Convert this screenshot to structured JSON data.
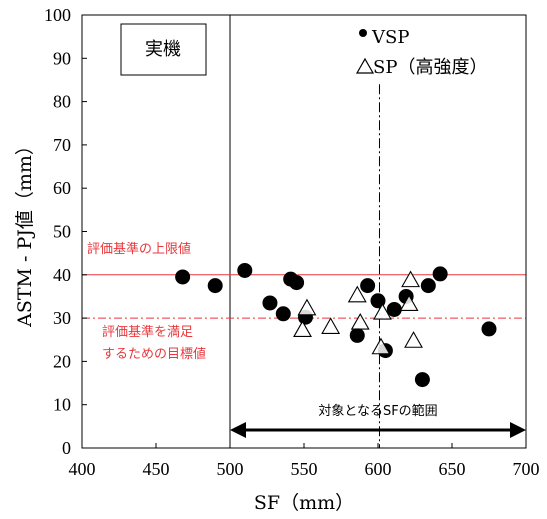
{
  "chart_data": {
    "type": "scatter",
    "xlabel": "SF（mm）",
    "ylabel": "ASTM - PJ値（mm）",
    "xlim": [
      400,
      700
    ],
    "ylim": [
      0,
      100
    ],
    "x_ticks": [
      "400",
      "450",
      "500",
      "550",
      "600",
      "650",
      "700"
    ],
    "y_ticks": [
      "0",
      "10",
      "20",
      "30",
      "40",
      "50",
      "60",
      "70",
      "80",
      "90",
      "100"
    ],
    "box_label": "実機",
    "legend": {
      "vsp_label": "VSP",
      "sp_label": "SP（高強度）"
    },
    "reference_lines": {
      "upper_limit": {
        "y": 40,
        "label": "評価基準の上限値",
        "color": "#e8383d"
      },
      "target": {
        "y": 30,
        "label_line1": "評価基準を満足",
        "label_line2": "するための目標値",
        "color": "#e8383d"
      },
      "vertical_ref_x": 601
    },
    "range_arrow": {
      "from": 500,
      "to": 700,
      "label": "対象となるSFの範囲"
    },
    "series": [
      {
        "name": "VSP",
        "marker": "filled-circle",
        "points": [
          [
            468,
            39.5
          ],
          [
            490,
            37.5
          ],
          [
            510,
            41
          ],
          [
            527,
            33.5
          ],
          [
            536,
            31
          ],
          [
            541,
            39
          ],
          [
            545,
            38.2
          ],
          [
            551,
            30.2
          ],
          [
            586,
            26
          ],
          [
            593,
            37.5
          ],
          [
            600,
            34
          ],
          [
            605,
            22.5
          ],
          [
            611,
            32
          ],
          [
            619,
            35
          ],
          [
            630,
            15.8
          ],
          [
            634,
            37.5
          ],
          [
            642,
            40.2
          ],
          [
            675,
            27.5
          ]
        ]
      },
      {
        "name": "SP（高強度）",
        "marker": "open-triangle",
        "points": [
          [
            549,
            27.5
          ],
          [
            552,
            32.5
          ],
          [
            568,
            28.2
          ],
          [
            586,
            35.5
          ],
          [
            588,
            29.2
          ],
          [
            602,
            23.5
          ],
          [
            603,
            31.5
          ],
          [
            621,
            33.5
          ],
          [
            622,
            39
          ],
          [
            624,
            25
          ]
        ]
      }
    ]
  }
}
